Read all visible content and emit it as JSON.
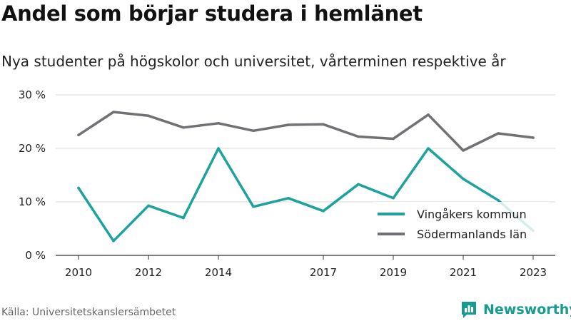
{
  "title": "Andel som börjar studera i hemlänet",
  "subtitle": "Nya studenter på högskolor och universitet, vårterminen respektive år",
  "source": "Källa: Universitetskanslersämbetet",
  "brand": {
    "name": "Newsworthy",
    "icon": "bar-chart-speech-icon",
    "color": "#179a8f"
  },
  "chart_data": {
    "type": "line",
    "x": [
      2010,
      2011,
      2012,
      2013,
      2014,
      2015,
      2016,
      2017,
      2018,
      2019,
      2020,
      2021,
      2022,
      2023
    ],
    "x_tick_labels": [
      "2010",
      "2012",
      "2014",
      "2017",
      "2019",
      "2021",
      "2023"
    ],
    "x_tick_values": [
      2010,
      2012,
      2014,
      2017,
      2019,
      2021,
      2023
    ],
    "y_ticks": [
      0,
      10,
      20,
      30
    ],
    "y_tick_labels": [
      "0 %",
      "10 %",
      "20 %",
      "30 %"
    ],
    "ylim": [
      0,
      30
    ],
    "xlim": [
      2010,
      2023
    ],
    "grid": true,
    "legend_position": "bottom-right",
    "series": [
      {
        "name": "Vingåkers kommun",
        "color": "#1ba39c",
        "values": [
          12.6,
          2.7,
          9.3,
          7.0,
          20.0,
          9.1,
          10.7,
          8.3,
          13.3,
          10.7,
          20.0,
          14.3,
          10.3,
          4.6
        ]
      },
      {
        "name": "Södermanlands län",
        "color": "#707075",
        "values": [
          22.5,
          26.8,
          26.1,
          23.9,
          24.7,
          23.3,
          24.4,
          24.5,
          22.2,
          21.8,
          26.3,
          19.6,
          22.8,
          22.0
        ]
      }
    ]
  }
}
